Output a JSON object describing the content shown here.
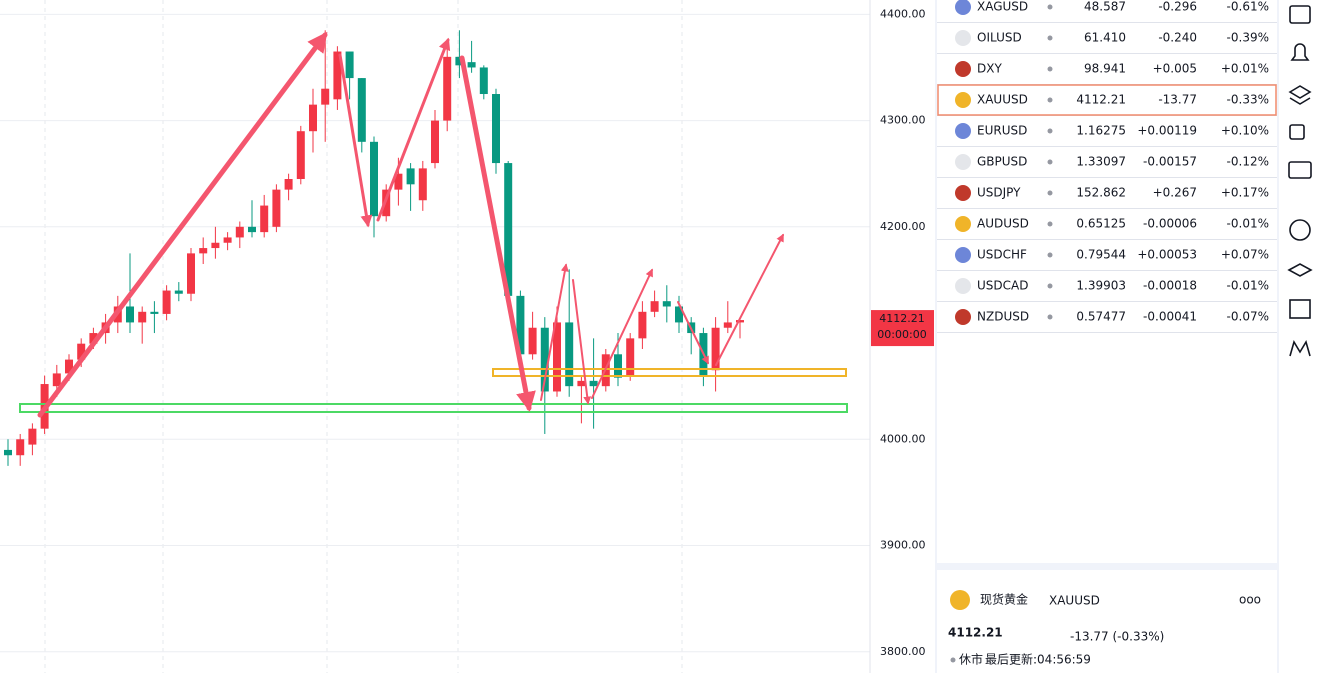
{
  "chart": {
    "up_color": "#f23645",
    "down_color": "#089981",
    "ylim": [
      3780,
      4413.5
    ],
    "yticks": [
      {
        "value": 4400,
        "label": "4400.00"
      },
      {
        "value": 4300,
        "label": "4300.00"
      },
      {
        "value": 4200,
        "label": "4200.00"
      },
      {
        "value": 4000,
        "label": "4000.00"
      },
      {
        "value": 3900,
        "label": "3900.00"
      },
      {
        "value": 3800,
        "label": "3800.00"
      }
    ],
    "grid": true,
    "price_tag": {
      "price": "4112.21",
      "countdown": "00:00:00"
    },
    "candles": [
      [
        3990,
        4000,
        3975,
        3985
      ],
      [
        3985,
        4005,
        3975,
        4000
      ],
      [
        3995,
        4015,
        3985,
        4010
      ],
      [
        4010,
        4060,
        4005,
        4052
      ],
      [
        4050,
        4070,
        4040,
        4062
      ],
      [
        4062,
        4080,
        4055,
        4075
      ],
      [
        4075,
        4095,
        4068,
        4090
      ],
      [
        4090,
        4105,
        4085,
        4100
      ],
      [
        4100,
        4118,
        4090,
        4110
      ],
      [
        4110,
        4135,
        4100,
        4125
      ],
      [
        4125,
        4175,
        4100,
        4110
      ],
      [
        4110,
        4125,
        4090,
        4120
      ],
      [
        4120,
        4130,
        4100,
        4118
      ],
      [
        4118,
        4145,
        4112,
        4140
      ],
      [
        4140,
        4148,
        4130,
        4137
      ],
      [
        4137,
        4180,
        4130,
        4175
      ],
      [
        4175,
        4190,
        4165,
        4180
      ],
      [
        4180,
        4200,
        4170,
        4185
      ],
      [
        4185,
        4195,
        4178,
        4190
      ],
      [
        4190,
        4205,
        4180,
        4200
      ],
      [
        4200,
        4225,
        4190,
        4195
      ],
      [
        4195,
        4230,
        4190,
        4220
      ],
      [
        4200,
        4240,
        4195,
        4235
      ],
      [
        4235,
        4250,
        4225,
        4245
      ],
      [
        4245,
        4295,
        4240,
        4290
      ],
      [
        4290,
        4330,
        4270,
        4315
      ],
      [
        4315,
        4385,
        4280,
        4330
      ],
      [
        4320,
        4370,
        4310,
        4365
      ],
      [
        4365,
        4365,
        4320,
        4340
      ],
      [
        4340,
        4340,
        4270,
        4280
      ],
      [
        4280,
        4285,
        4190,
        4210
      ],
      [
        4210,
        4240,
        4205,
        4235
      ],
      [
        4235,
        4265,
        4220,
        4250
      ],
      [
        4255,
        4260,
        4215,
        4240
      ],
      [
        4225,
        4262,
        4215,
        4255
      ],
      [
        4260,
        4310,
        4255,
        4300
      ],
      [
        4300,
        4375,
        4290,
        4360
      ],
      [
        4360,
        4385,
        4340,
        4352
      ],
      [
        4355,
        4375,
        4345,
        4350
      ],
      [
        4350,
        4352,
        4320,
        4325
      ],
      [
        4325,
        4330,
        4250,
        4260
      ],
      [
        4260,
        4262,
        4125,
        4135
      ],
      [
        4135,
        4140,
        4070,
        4080
      ],
      [
        4080,
        4120,
        4075,
        4105
      ],
      [
        4105,
        4115,
        4005,
        4045
      ],
      [
        4045,
        4125,
        4040,
        4110
      ],
      [
        4110,
        4160,
        4040,
        4050
      ],
      [
        4050,
        4060,
        4015,
        4055
      ],
      [
        4055,
        4095,
        4010,
        4050
      ],
      [
        4050,
        4085,
        4045,
        4080
      ],
      [
        4080,
        4100,
        4050,
        4058
      ],
      [
        4060,
        4100,
        4055,
        4095
      ],
      [
        4095,
        4130,
        4085,
        4120
      ],
      [
        4120,
        4140,
        4115,
        4130
      ],
      [
        4130,
        4145,
        4110,
        4125
      ],
      [
        4125,
        4135,
        4100,
        4110
      ],
      [
        4110,
        4115,
        4080,
        4100
      ],
      [
        4100,
        4105,
        4050,
        4060
      ],
      [
        4065,
        4115,
        4045,
        4105
      ],
      [
        4105,
        4130,
        4100,
        4110
      ],
      [
        4110,
        4115,
        4095,
        4112.21
      ]
    ]
  },
  "watchlist": {
    "rows": [
      [
        "XAGUSD",
        "48.587",
        "-0.296",
        "-0.61%"
      ],
      [
        "OILUSD",
        "61.410",
        "-0.240",
        "-0.39%"
      ],
      [
        "DXY",
        "98.941",
        "+0.005",
        "+0.01%"
      ],
      [
        "XAUUSD",
        "4112.21",
        "-13.77",
        "-0.33%"
      ],
      [
        "EURUSD",
        "1.16275",
        "+0.00119",
        "+0.10%"
      ],
      [
        "GBPUSD",
        "1.33097",
        "-0.00157",
        "-0.12%"
      ],
      [
        "USDJPY",
        "152.862",
        "+0.267",
        "+0.17%"
      ],
      [
        "AUDUSD",
        "0.65125",
        "-0.00006",
        "-0.01%"
      ],
      [
        "USDCHF",
        "0.79544",
        "+0.00053",
        "+0.07%"
      ],
      [
        "USDCAD",
        "1.39903",
        "-0.00018",
        "-0.01%"
      ],
      [
        "NZDUSD",
        "0.57477",
        "-0.00041",
        "-0.07%"
      ]
    ],
    "selected": 3
  },
  "detail": {
    "name": "现货黄金",
    "symbol": "XAUUSD",
    "price": "4112.21",
    "change": "-13.77 (-0.33%)",
    "status": "休市",
    "updated": "最后更新:04:56:59"
  }
}
